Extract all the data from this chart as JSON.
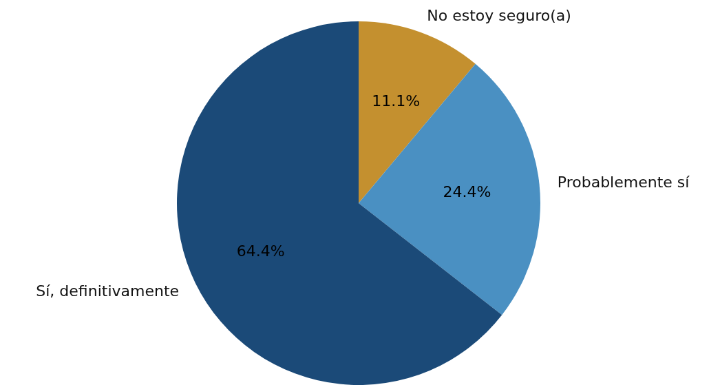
{
  "chart_data": {
    "type": "pie",
    "categories": [
      "No estoy seguro(a)",
      "Probablemente sí",
      "Sí, definitivamente"
    ],
    "values": [
      11.1,
      24.4,
      64.4
    ],
    "colors": [
      "#c4902f",
      "#4a90c2",
      "#1b4a78"
    ],
    "value_labels": [
      "11.1%",
      "24.4%",
      "64.4%"
    ]
  }
}
